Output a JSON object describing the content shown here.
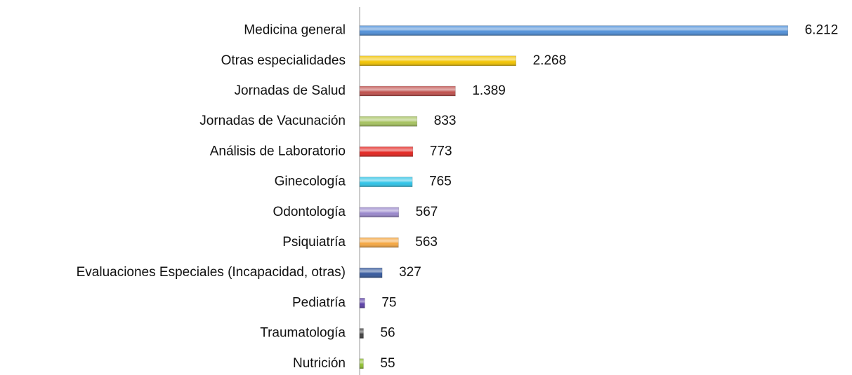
{
  "chart_data": {
    "type": "barh",
    "categories": [
      "Medicina general",
      "Otras especialidades",
      "Jornadas de Salud",
      "Jornadas de Vacunación",
      "Análisis de Laboratorio",
      "Ginecología",
      "Odontología",
      "Psiquiatría",
      "Evaluaciones Especiales (Incapacidad, otras)",
      "Pediatría",
      "Traumatología",
      "Nutrición"
    ],
    "values": [
      6212,
      2268,
      1389,
      833,
      773,
      765,
      567,
      563,
      327,
      75,
      56,
      55
    ],
    "value_labels": [
      "6.212",
      "2.268",
      "1.389",
      "833",
      "773",
      "765",
      "567",
      "563",
      "327",
      "75",
      "56",
      "55"
    ],
    "colors": [
      "#4f8fd8",
      "#f2c400",
      "#c0504d",
      "#a6c35f",
      "#e3231f",
      "#2ec4e8",
      "#9a88cc",
      "#f5a742",
      "#34589c",
      "#5b3fa8",
      "#404040",
      "#8fbf30"
    ],
    "xlim": [
      0,
      6500
    ]
  }
}
